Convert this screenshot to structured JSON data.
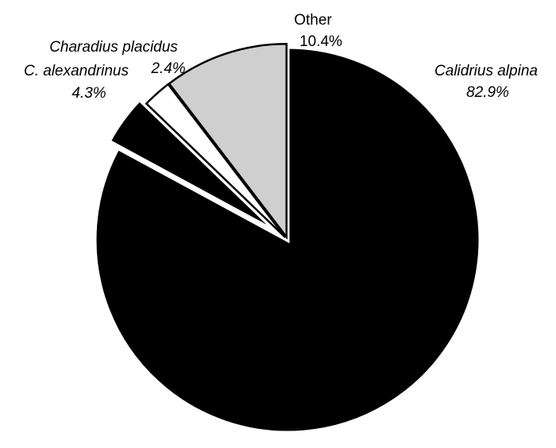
{
  "chart_data": {
    "type": "pie",
    "labels": [
      "Calidrius alpina",
      "C. alexandrinus",
      "Charadius placidus",
      "Other"
    ],
    "values": [
      82.9,
      4.3,
      2.4,
      10.4
    ],
    "value_labels": [
      "82.9%",
      "4.3%",
      "2.4%",
      "10.4%"
    ],
    "colors": [
      "#000000",
      "#000000",
      "#ffffff",
      "#cfcfcf"
    ]
  }
}
